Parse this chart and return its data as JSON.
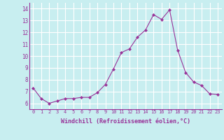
{
  "x": [
    0,
    1,
    2,
    3,
    4,
    5,
    6,
    7,
    8,
    9,
    10,
    11,
    12,
    13,
    14,
    15,
    16,
    17,
    18,
    19,
    20,
    21,
    22,
    23
  ],
  "y": [
    7.3,
    6.4,
    6.0,
    6.2,
    6.4,
    6.4,
    6.5,
    6.5,
    6.9,
    7.6,
    8.9,
    10.3,
    10.6,
    11.6,
    12.2,
    13.5,
    13.1,
    13.9,
    10.5,
    8.6,
    7.8,
    7.5,
    6.8,
    6.75
  ],
  "xlabel": "Windchill (Refroidissement éolien,°C)",
  "background_color": "#c8eef0",
  "line_color": "#993399",
  "marker_color": "#993399",
  "grid_color": "#ffffff",
  "ylim": [
    5.5,
    14.5
  ],
  "xlim": [
    -0.5,
    23.5
  ],
  "yticks": [
    6,
    7,
    8,
    9,
    10,
    11,
    12,
    13,
    14
  ],
  "xticks": [
    0,
    1,
    2,
    3,
    4,
    5,
    6,
    7,
    8,
    9,
    10,
    11,
    12,
    13,
    14,
    15,
    16,
    17,
    18,
    19,
    20,
    21,
    22,
    23
  ],
  "tick_fontsize": 5.0,
  "xlabel_fontsize": 6.0
}
